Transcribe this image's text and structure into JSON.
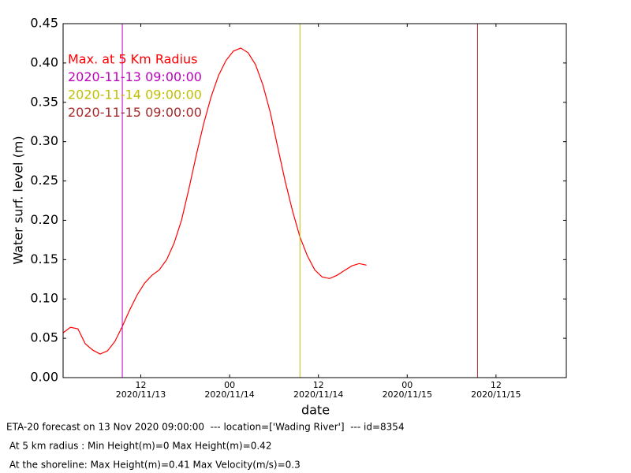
{
  "chart_data": {
    "type": "line",
    "xlabel": "date",
    "ylabel": "Water surf. level (m)",
    "xlim": [
      1.5,
      69.5
    ],
    "ylim": [
      0,
      0.45
    ],
    "xticks": [
      {
        "value": 12,
        "label": "12"
      },
      {
        "value": 24,
        "label": "00"
      },
      {
        "value": 36,
        "label": "12"
      },
      {
        "value": 48,
        "label": "00"
      },
      {
        "value": 60,
        "label": "12"
      }
    ],
    "xtick_dates": [
      "2020/11/13",
      "2020/11/14",
      "2020/11/14",
      "2020/11/15",
      "2020/11/15"
    ],
    "yticks": [
      {
        "value": 0,
        "label": "0.00"
      },
      {
        "value": 0.05,
        "label": "0.05"
      },
      {
        "value": 0.1,
        "label": "0.10"
      },
      {
        "value": 0.15,
        "label": "0.15"
      },
      {
        "value": 0.2,
        "label": "0.20"
      },
      {
        "value": 0.25,
        "label": "0.25"
      },
      {
        "value": 0.3,
        "label": "0.30"
      },
      {
        "value": 0.35,
        "label": "0.35"
      },
      {
        "value": 0.4,
        "label": "0.40"
      },
      {
        "value": 0.45,
        "label": "0.45"
      }
    ],
    "x": [
      1.5,
      2.5,
      3.5,
      4.5,
      5.5,
      6.5,
      7.5,
      8.5,
      9.5,
      10.5,
      11.5,
      12.5,
      13.5,
      14.5,
      15.5,
      16.5,
      17.5,
      18.5,
      19.5,
      20.5,
      21.5,
      22.5,
      23.5,
      24.5,
      25.5,
      26.5,
      27.5,
      28.5,
      29.5,
      30.5,
      31.5,
      32.5,
      33.5,
      34.5,
      35.5,
      36.5,
      37.5,
      38.5,
      39.5,
      40.5,
      41.5,
      42.5
    ],
    "series": [
      {
        "name": "Max. at 5 Km Radius",
        "color": "#ff0000",
        "values": [
          0.057,
          0.064,
          0.062,
          0.043,
          0.035,
          0.03,
          0.034,
          0.046,
          0.065,
          0.086,
          0.105,
          0.12,
          0.13,
          0.137,
          0.15,
          0.171,
          0.2,
          0.24,
          0.283,
          0.323,
          0.357,
          0.384,
          0.403,
          0.415,
          0.419,
          0.413,
          0.398,
          0.372,
          0.337,
          0.293,
          0.25,
          0.212,
          0.179,
          0.155,
          0.137,
          0.128,
          0.126,
          0.13,
          0.136,
          0.142,
          0.145,
          0.143
        ]
      }
    ],
    "vlines": [
      {
        "label": "2020-11-13 09:00:00",
        "x": 9.5,
        "color": "#bf00bf"
      },
      {
        "label": "2020-11-14 09:00:00",
        "x": 33.5,
        "color": "#bfbf00"
      },
      {
        "label": "2020-11-15 09:00:00",
        "x": 57.5,
        "color": "#a52a2a"
      }
    ]
  },
  "footer": [
    "ETA-20 forecast on 13 Nov 2020 09:00:00  --- location=['Wading River']  --- id=8354",
    " At 5 km radius : Min Height(m)=0 Max Height(m)=0.42",
    " At the shoreline: Max Height(m)=0.41 Max Velocity(m/s)=0.3"
  ]
}
